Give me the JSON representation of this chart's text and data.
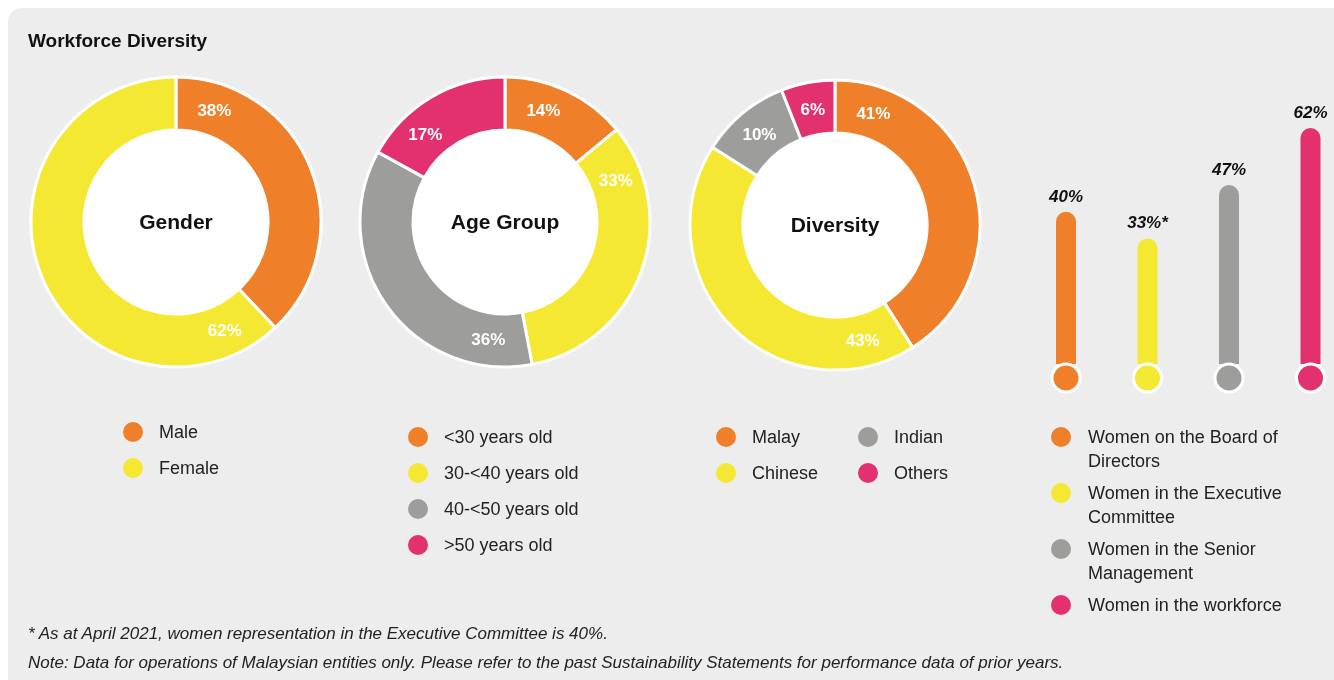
{
  "chart_data": [
    {
      "type": "other",
      "title": "Workforce Diversity",
      "annotations": [
        "*  As at April 2021, women representation in the Executive Committee is 40%.",
        "Note: Data for operations of Malaysian entities only. Please refer to the past Sustainability Statements for performance data of prior years."
      ]
    },
    {
      "type": "donut",
      "title": "Gender",
      "categories": [
        "Male",
        "Female"
      ],
      "values": [
        38,
        62
      ],
      "colors": [
        "#ef7f28",
        "#f5e832"
      ],
      "value_labels": [
        "38%",
        "62%"
      ],
      "legend": "bottom"
    },
    {
      "type": "donut",
      "title": "Age Group",
      "categories": [
        "<30 years old",
        "30-<40 years old",
        "40-<50 years old",
        ">50 years old"
      ],
      "values": [
        14,
        33,
        36,
        17
      ],
      "colors": [
        "#ef7f28",
        "#f5e832",
        "#9d9d9b",
        "#e3306e"
      ],
      "value_labels": [
        "14%",
        "33%",
        "36%",
        "17%"
      ],
      "legend": "bottom"
    },
    {
      "type": "donut",
      "title": "Diversity",
      "categories": [
        "Malay",
        "Chinese",
        "Indian",
        "Others"
      ],
      "values": [
        41,
        43,
        10,
        6
      ],
      "colors": [
        "#ef7f28",
        "#f5e832",
        "#9d9d9b",
        "#e3306e"
      ],
      "value_labels": [
        "41%",
        "43%",
        "10%",
        "6%"
      ],
      "legend": "bottom"
    },
    {
      "type": "bar",
      "stacked": true,
      "categories": [
        null,
        null,
        null,
        null
      ],
      "legend": "bottom",
      "series": [
        {
          "name": "Women on the Board of Directors",
          "color": "#ef7f28",
          "values": [
            40,
            null,
            null,
            null
          ],
          "value_labels": [
            "40%",
            null,
            null,
            null
          ]
        },
        {
          "name": "Women in the Executive Committee",
          "color": "#f5e832",
          "values": [
            null,
            33,
            null,
            null
          ],
          "value_labels": [
            null,
            "33%*",
            null,
            null
          ]
        },
        {
          "name": "Women in the Senior Management",
          "color": "#9d9d9b",
          "values": [
            null,
            null,
            47,
            null
          ],
          "value_labels": [
            null,
            null,
            "47%",
            null
          ]
        },
        {
          "name": "Women in the workforce",
          "color": "#e3306e",
          "values": [
            null,
            null,
            null,
            62
          ],
          "value_labels": [
            null,
            null,
            null,
            "62%"
          ]
        }
      ]
    }
  ]
}
